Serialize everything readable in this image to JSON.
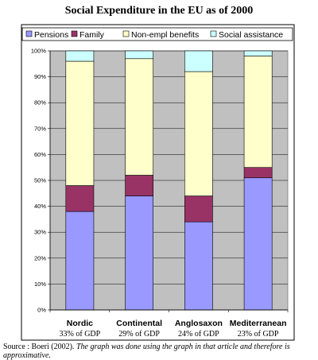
{
  "chart_data": {
    "type": "bar",
    "stacked": true,
    "title": "Social Expenditure in the EU as of 2000",
    "categories": [
      "Nordic",
      "Continental",
      "Anglosaxon",
      "Mediterranean"
    ],
    "sublabels": [
      "33% of GDP",
      "29% of GDP",
      "24% of GDP",
      "23% of GDP"
    ],
    "series": [
      {
        "name": "Pensions",
        "color": "#9999ff",
        "values": [
          38,
          44,
          34,
          51
        ]
      },
      {
        "name": "Family",
        "color": "#993366",
        "values": [
          10,
          8,
          10,
          4
        ]
      },
      {
        "name": "Non-empl benefits",
        "color": "#ffffcc",
        "values": [
          48,
          45,
          48,
          43
        ]
      },
      {
        "name": "Social assistance",
        "color": "#ccffff",
        "values": [
          4,
          3,
          8,
          2
        ]
      }
    ],
    "ylim": [
      0,
      100
    ],
    "yticks": [
      "0%",
      "10%",
      "20%",
      "30%",
      "40%",
      "50%",
      "60%",
      "70%",
      "80%",
      "90%",
      "100%"
    ],
    "legend_position": "top",
    "plot_background": "#c0c0c0",
    "grid": true
  },
  "caption": {
    "source": "Source : Boeri (2002).",
    "note": "The graph was done using the graph in that article and therefore is approximative."
  }
}
